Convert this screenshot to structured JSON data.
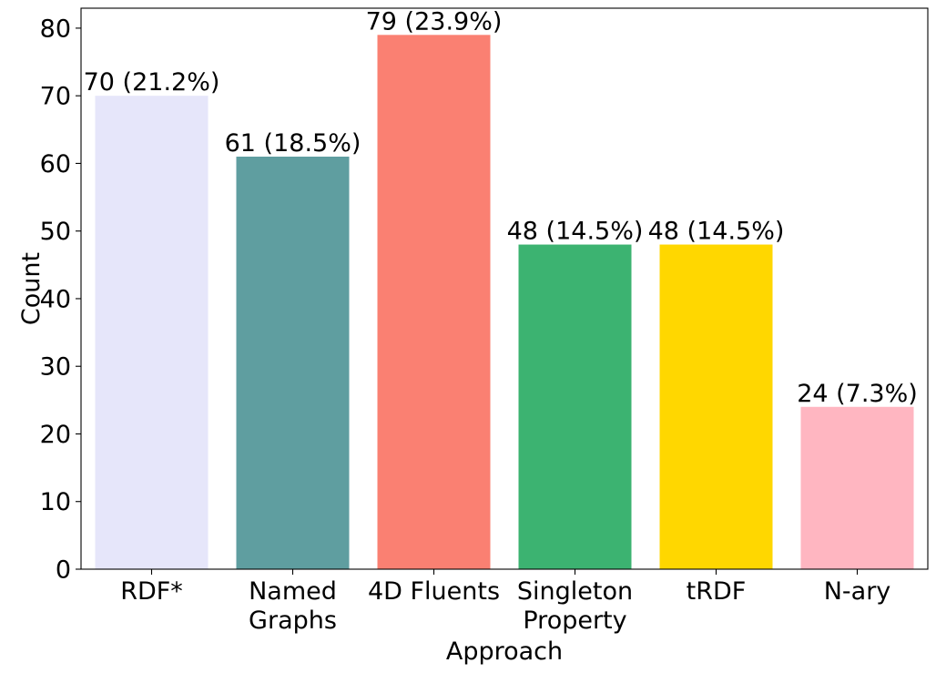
{
  "chart_data": {
    "type": "bar",
    "categories": [
      [
        "RDF*"
      ],
      [
        "Named",
        "Graphs"
      ],
      [
        "4D Fluents"
      ],
      [
        "Singleton",
        "Property"
      ],
      [
        "tRDF"
      ],
      [
        "N-ary"
      ]
    ],
    "values": [
      70,
      61,
      79,
      48,
      48,
      24
    ],
    "data_labels": [
      "70 (21.2%)",
      "61 (18.5%)",
      "79 (23.9%)",
      "48 (14.5%)",
      "48 (14.5%)",
      "24 (7.3%)"
    ],
    "colors": [
      "#e6e6fa",
      "#5f9ea0",
      "#fa8072",
      "#3cb371",
      "#ffd700",
      "#ffb6c1"
    ],
    "xlabel": "Approach",
    "ylabel": "Count",
    "ylim": [
      0,
      82.95
    ],
    "yticks": [
      0,
      10,
      20,
      30,
      40,
      50,
      60,
      70,
      80
    ],
    "grid": false,
    "legend": false
  }
}
